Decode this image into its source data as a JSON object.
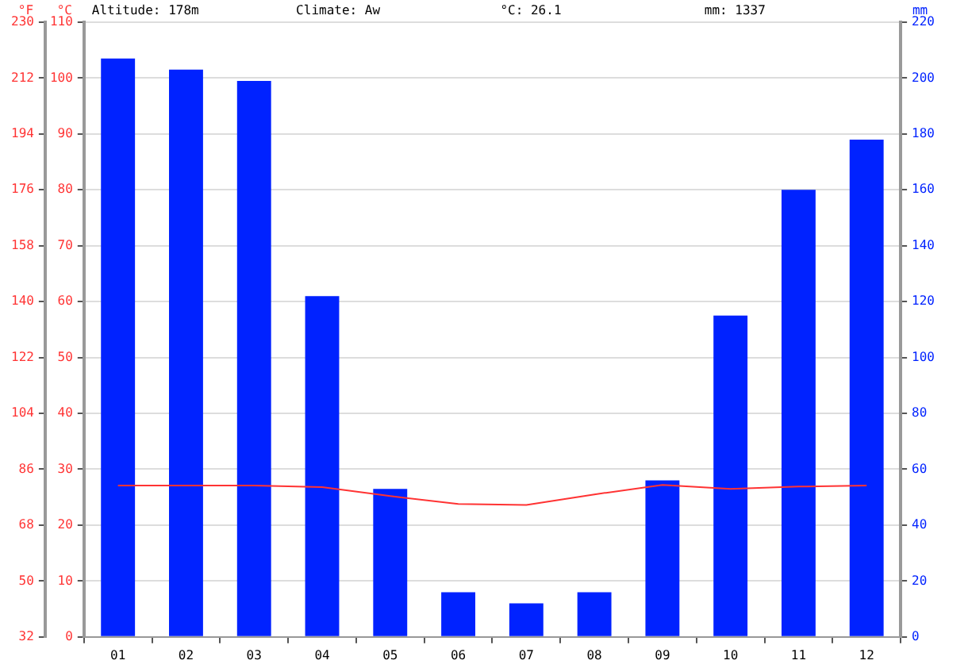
{
  "chart_data": {
    "type": "bar",
    "ylabel": "°C",
    "y2label": "mm",
    "y3label": "°F",
    "annotations": [
      "Altitude: 178m",
      "Climate: Aw",
      "°C: 26.1",
      "mm: 1337"
    ],
    "categories": [
      "01",
      "02",
      "03",
      "04",
      "05",
      "06",
      "07",
      "08",
      "09",
      "10",
      "11",
      "12"
    ],
    "series": [
      {
        "axis": "y2",
        "color": "#0022ff",
        "values": [
          207,
          203,
          199,
          122,
          53,
          16,
          12,
          16,
          56,
          115,
          160,
          178
        ]
      },
      {
        "type": "line",
        "axis": "y",
        "color": "#ff3333",
        "values": [
          27.1,
          27.1,
          27.1,
          26.8,
          25.2,
          23.8,
          23.6,
          25.5,
          27.2,
          26.5,
          26.9,
          27.1
        ]
      }
    ],
    "ylim": [
      0,
      110
    ],
    "yticks": [
      0,
      10,
      20,
      30,
      40,
      50,
      60,
      70,
      80,
      90,
      100,
      110
    ],
    "y2lim": [
      0,
      220
    ],
    "y2ticks": [
      0,
      20,
      40,
      60,
      80,
      100,
      120,
      140,
      160,
      180,
      200,
      220
    ],
    "y3lim": [
      32,
      230
    ],
    "y3ticks": [
      32,
      50,
      68,
      86,
      104,
      122,
      140,
      158,
      176,
      194,
      212,
      230
    ],
    "grid": "y",
    "legend": false,
    "marker": "none",
    "line_style": "solid"
  }
}
